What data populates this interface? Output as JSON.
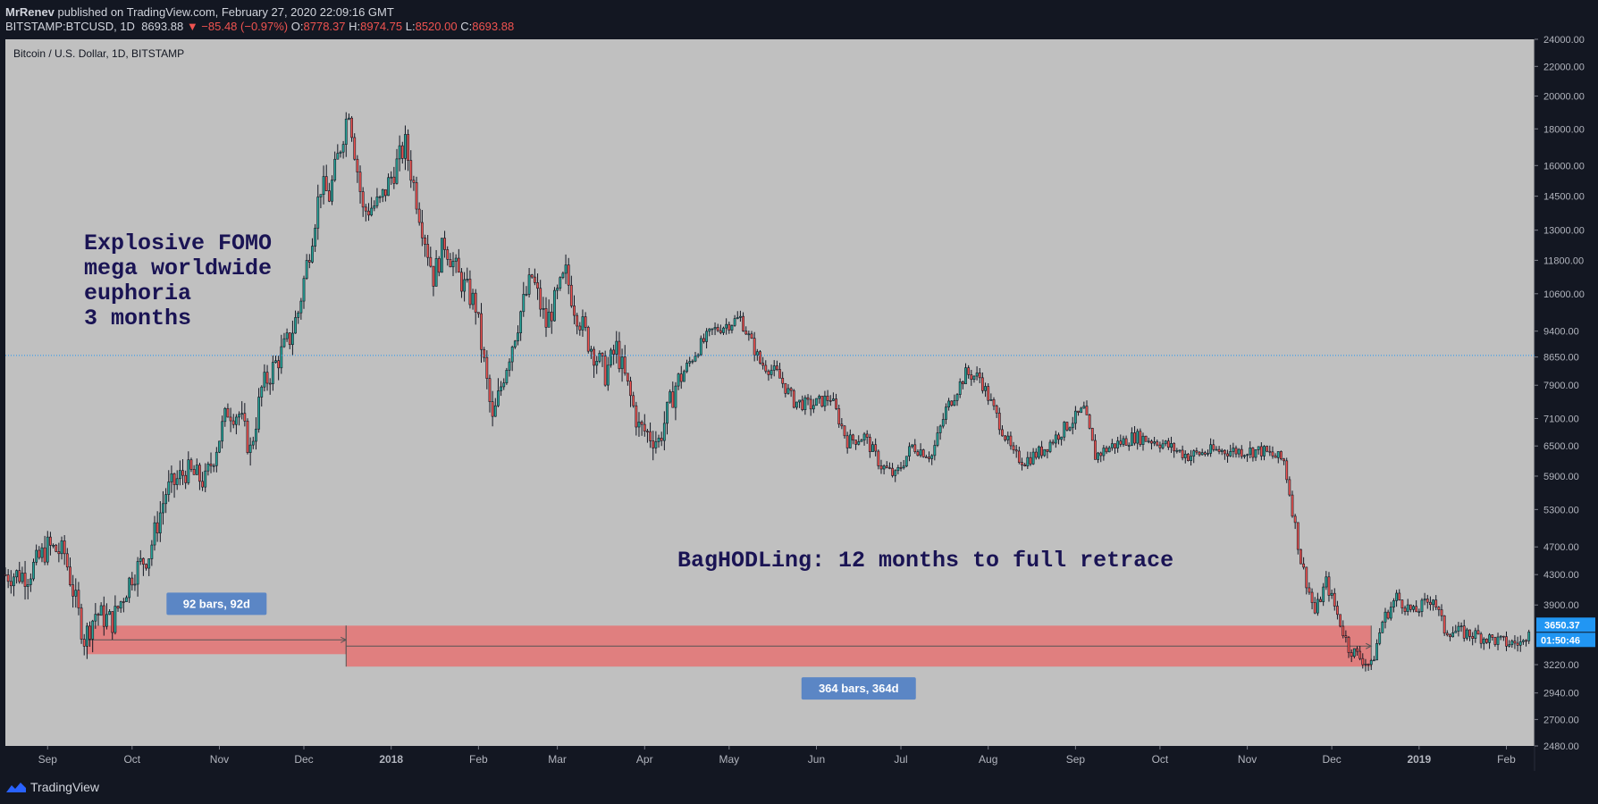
{
  "header": {
    "publisher": "MrRenev",
    "published_text": "published on TradingView.com, February 27, 2020 22:09:16 GMT",
    "symbol": "BITSTAMP:BTCUSD, 1D",
    "last": "8693.88",
    "change": "▼ −85.48 (−0.97%)",
    "o_label": "O:",
    "o": "8778.37",
    "h_label": "H:",
    "h": "8974.75",
    "l_label": "L:",
    "l": "8520.00",
    "c_label": "C:",
    "c": "8693.88"
  },
  "chart_data": {
    "type": "candlestick",
    "title": "Bitcoin / U.S. Dollar, 1D, BITSTAMP",
    "scale": "log",
    "ylim": [
      2480,
      24000
    ],
    "y_ticks": [
      "24000.00",
      "22000.00",
      "20000.00",
      "18000.00",
      "16000.00",
      "14500.00",
      "13000.00",
      "11800.00",
      "10600.00",
      "9400.00",
      "8650.00",
      "7900.00",
      "7100.00",
      "6500.00",
      "5900.00",
      "5300.00",
      "4700.00",
      "4300.00",
      "3900.00",
      "3220.00",
      "2940.00",
      "2700.00",
      "2480.00"
    ],
    "x_ticks": [
      "Sep",
      "Oct",
      "Nov",
      "Dec",
      "2018",
      "Feb",
      "Mar",
      "Apr",
      "May",
      "Jun",
      "Jul",
      "Aug",
      "Sep",
      "Oct",
      "Nov",
      "Dec",
      "2019",
      "Feb"
    ],
    "x_tick_dates": [
      "2017-09-01",
      "2017-10-01",
      "2017-11-01",
      "2017-12-01",
      "2018-01-01",
      "2018-02-01",
      "2018-03-01",
      "2018-04-01",
      "2018-05-01",
      "2018-06-01",
      "2018-07-01",
      "2018-08-01",
      "2018-09-01",
      "2018-10-01",
      "2018-11-01",
      "2018-12-01",
      "2019-01-01",
      "2019-02-01"
    ],
    "x_range": [
      "2017-08-17",
      "2019-02-11"
    ],
    "price_path": [
      [
        "2017-08-17",
        4300
      ],
      [
        "2017-08-25",
        4300
      ],
      [
        "2017-09-01",
        4700
      ],
      [
        "2017-09-07",
        4600
      ],
      [
        "2017-09-14",
        3500
      ],
      [
        "2017-09-18",
        3800
      ],
      [
        "2017-09-24",
        3700
      ],
      [
        "2017-10-01",
        4300
      ],
      [
        "2017-10-07",
        4600
      ],
      [
        "2017-10-13",
        5600
      ],
      [
        "2017-10-20",
        6000
      ],
      [
        "2017-10-27",
        5800
      ],
      [
        "2017-11-04",
        7300
      ],
      [
        "2017-11-08",
        7200
      ],
      [
        "2017-11-12",
        6400
      ],
      [
        "2017-11-16",
        7800
      ],
      [
        "2017-11-26",
        9200
      ],
      [
        "2017-11-29",
        10000
      ],
      [
        "2017-12-07",
        15000
      ],
      [
        "2017-12-10",
        14500
      ],
      [
        "2017-12-17",
        19300
      ],
      [
        "2017-12-22",
        13800
      ],
      [
        "2017-12-28",
        14200
      ],
      [
        "2018-01-06",
        17100
      ],
      [
        "2018-01-11",
        13800
      ],
      [
        "2018-01-16",
        11200
      ],
      [
        "2018-01-20",
        12500
      ],
      [
        "2018-01-25",
        11200
      ],
      [
        "2018-01-31",
        10200
      ],
      [
        "2018-02-02",
        9000
      ],
      [
        "2018-02-06",
        7000
      ],
      [
        "2018-02-10",
        8200
      ],
      [
        "2018-02-16",
        10000
      ],
      [
        "2018-02-20",
        11200
      ],
      [
        "2018-02-25",
        9600
      ],
      [
        "2018-03-04",
        11300
      ],
      [
        "2018-03-07",
        10200
      ],
      [
        "2018-03-12",
        9100
      ],
      [
        "2018-03-18",
        8200
      ],
      [
        "2018-03-22",
        8900
      ],
      [
        "2018-03-30",
        6900
      ],
      [
        "2018-04-06",
        6600
      ],
      [
        "2018-04-12",
        7900
      ],
      [
        "2018-04-20",
        8900
      ],
      [
        "2018-04-25",
        9400
      ],
      [
        "2018-05-05",
        9800
      ],
      [
        "2018-05-12",
        8500
      ],
      [
        "2018-05-18",
        8200
      ],
      [
        "2018-05-24",
        7500
      ],
      [
        "2018-05-30",
        7400
      ],
      [
        "2018-06-06",
        7600
      ],
      [
        "2018-06-12",
        6600
      ],
      [
        "2018-06-18",
        6700
      ],
      [
        "2018-06-24",
        6100
      ],
      [
        "2018-06-29",
        5900
      ],
      [
        "2018-07-05",
        6500
      ],
      [
        "2018-07-12",
        6300
      ],
      [
        "2018-07-17",
        7300
      ],
      [
        "2018-07-24",
        8200
      ],
      [
        "2018-07-29",
        8100
      ],
      [
        "2018-08-05",
        7000
      ],
      [
        "2018-08-10",
        6300
      ],
      [
        "2018-08-14",
        6200
      ],
      [
        "2018-08-20",
        6400
      ],
      [
        "2018-08-30",
        7000
      ],
      [
        "2018-09-04",
        7300
      ],
      [
        "2018-09-08",
        6300
      ],
      [
        "2018-09-14",
        6500
      ],
      [
        "2018-09-22",
        6700
      ],
      [
        "2018-09-30",
        6600
      ],
      [
        "2018-10-11",
        6300
      ],
      [
        "2018-10-20",
        6400
      ],
      [
        "2018-11-06",
        6400
      ],
      [
        "2018-11-14",
        6200
      ],
      [
        "2018-11-16",
        5600
      ],
      [
        "2018-11-20",
        4500
      ],
      [
        "2018-11-25",
        3800
      ],
      [
        "2018-11-29",
        4200
      ],
      [
        "2018-12-07",
        3400
      ],
      [
        "2018-12-15",
        3200
      ],
      [
        "2018-12-19",
        3700
      ],
      [
        "2018-12-24",
        4000
      ],
      [
        "2018-12-30",
        3800
      ],
      [
        "2019-01-06",
        4000
      ],
      [
        "2019-01-10",
        3600
      ],
      [
        "2019-01-20",
        3550
      ],
      [
        "2019-02-01",
        3450
      ],
      [
        "2019-02-07",
        3450
      ],
      [
        "2019-02-09",
        3650
      ]
    ],
    "current_price_line": 8693.88,
    "price_label": "3650.37",
    "time_label": "01:50:46",
    "annotations": {
      "fomo": [
        "Explosive FOMO",
        "mega worldwide",
        "euphoria",
        "3 months"
      ],
      "baghodl": "BagHODLing: 12 months to full retrace"
    },
    "ranges": [
      {
        "label": "92 bars, 92d",
        "start": "2017-09-15",
        "end": "2017-12-16",
        "price_low": 3330,
        "price_high": 3650
      },
      {
        "label": "364 bars, 364d",
        "start": "2017-12-16",
        "end": "2018-12-15",
        "price_low": 3200,
        "price_high": 3650
      }
    ]
  },
  "colors": {
    "background": "#c0c0c0",
    "up": "#26a69a",
    "down": "#ef5350",
    "range_fill": "#e57373",
    "label_bg": "#5b86c5",
    "price_label_bg": "#2196f3"
  },
  "footer": {
    "brand": "TradingView"
  }
}
